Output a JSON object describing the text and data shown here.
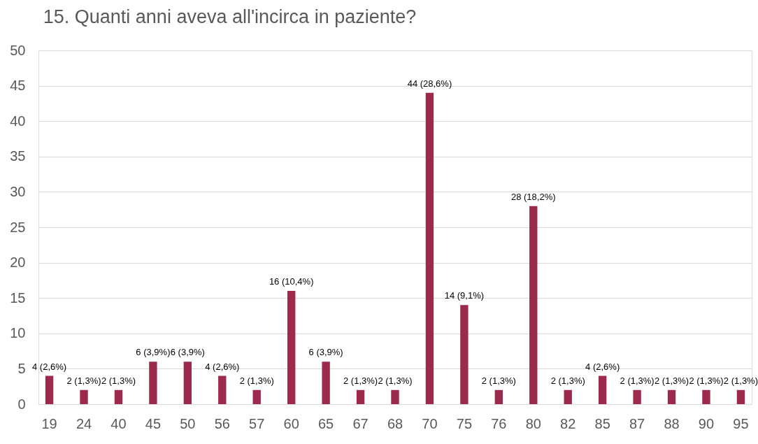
{
  "chart_data": {
    "type": "bar",
    "title": "15. Quanti anni aveva all'incirca in paziente?",
    "categories": [
      "19",
      "24",
      "40",
      "45",
      "50",
      "56",
      "57",
      "60",
      "65",
      "67",
      "68",
      "70",
      "75",
      "76",
      "80",
      "82",
      "85",
      "87",
      "88",
      "90",
      "95"
    ],
    "values": [
      4,
      2,
      2,
      6,
      6,
      4,
      2,
      16,
      6,
      2,
      2,
      44,
      14,
      2,
      28,
      2,
      4,
      2,
      2,
      2,
      2
    ],
    "value_labels": [
      "4 (2,6%)",
      "2 (1,3%)",
      "2 (1,3%)",
      "6 (3,9%)",
      "6 (3,9%)",
      "4 (2,6%)",
      "2 (1,3%)",
      "16 (10,4%)",
      "6 (3,9%)",
      "2 (1,3%)",
      "2 (1,3%)",
      "44 (28,6%)",
      "14 (9,1%)",
      "2 (1,3%)",
      "28 (18,2%)",
      "2 (1,3%)",
      "4 (2,6%)",
      "2 (1,3%)",
      "2 (1,3%)",
      "2 (1,3%)",
      "2 (1,3%)"
    ],
    "color": "#9b2a4c",
    "ylim": [
      0,
      50
    ],
    "yticks": [
      0,
      5,
      10,
      15,
      20,
      25,
      30,
      35,
      40,
      45,
      50
    ],
    "grid": "y"
  }
}
